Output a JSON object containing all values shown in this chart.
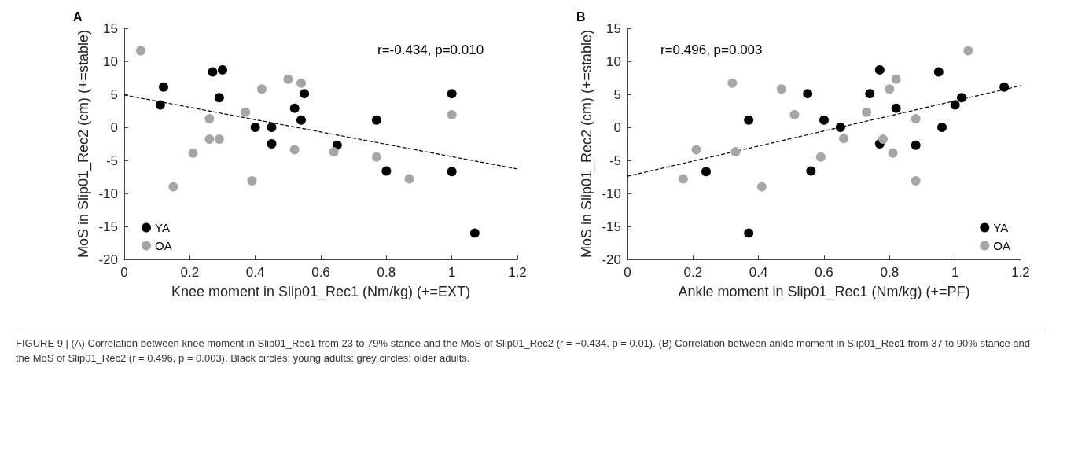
{
  "chart_data": [
    {
      "type": "scatter",
      "title": "A",
      "xlabel": "Knee moment in Slip01_Rec1 (Nm/kg) (+=EXT)",
      "ylabel": "MoS in Slip01_Rec2 (cm) (+=stable)",
      "xlim": [
        0,
        1.2
      ],
      "xticks": [
        0,
        0.2,
        0.4,
        0.6,
        0.8,
        1,
        1.2
      ],
      "ylim": [
        -20,
        15
      ],
      "yticks": [
        -20,
        -15,
        -10,
        -5,
        0,
        5,
        10,
        15
      ],
      "grid": false,
      "legend": "bottom left",
      "marker": "circle",
      "annotations": [
        "r=-0.434, p=0.010",
        "FIGURE 9 | (A) Correlation between knee moment in Slip01_Rec1 from 23 to 79% stance and the MoS of Slip01_Rec2 (r = −0.434, p = 0.01). (B) Correlation between ankle moment in Slip01_Rec1 from 37 to 90% stance and the MoS of Slip01_Rec2 (r = 0.496, p = 0.003). Black circles: young adults; grey circles: older adults."
      ],
      "series": [
        {
          "name": "YA",
          "color": "#000000",
          "x": [
            0.11,
            0.12,
            0.27,
            0.3,
            0.29,
            0.4,
            0.45,
            0.45,
            0.52,
            0.54,
            0.55,
            0.65,
            0.77,
            0.8,
            1.0,
            1.0,
            1.07
          ],
          "values": [
            3.4,
            6.1,
            8.4,
            8.7,
            4.5,
            0,
            0,
            -2.5,
            2.9,
            1.1,
            5.1,
            -2.7,
            1.1,
            -6.6,
            5.1,
            -6.7,
            -16
          ]
        },
        {
          "name": "OA",
          "color": "#a6a6a6",
          "x": [
            0.05,
            0.15,
            0.21,
            0.26,
            0.26,
            0.29,
            0.37,
            0.39,
            0.42,
            0.5,
            0.54,
            0.52,
            0.64,
            0.77,
            0.87,
            1.0
          ],
          "values": [
            11.6,
            -9,
            -3.9,
            1.3,
            -1.8,
            -1.8,
            2.3,
            -8.1,
            5.8,
            7.3,
            6.7,
            -3.4,
            -3.7,
            -4.5,
            -7.8,
            1.9
          ]
        },
        {
          "type": "line",
          "color": "#000000",
          "line_style": "dashed",
          "marker": "none",
          "x": [
            0,
            1.2
          ],
          "values": [
            4.9,
            -6.3
          ]
        }
      ]
    },
    {
      "type": "scatter",
      "title": "B",
      "xlabel": "Ankle moment in Slip01_Rec1 (Nm/kg) (+=PF)",
      "ylabel": "MoS in Slip01_Rec2 (cm) (+=stable)",
      "xlim": [
        0,
        1.2
      ],
      "xticks": [
        0,
        0.2,
        0.4,
        0.6,
        0.8,
        1,
        1.2
      ],
      "ylim": [
        -20,
        15
      ],
      "yticks": [
        -20,
        -15,
        -10,
        -5,
        0,
        5,
        10,
        15
      ],
      "grid": false,
      "legend": "bottom right",
      "marker": "circle",
      "annotations": [
        "r=0.496, p=0.003"
      ],
      "series": [
        {
          "name": "YA",
          "color": "#000000",
          "x": [
            0.37,
            0.24,
            0.37,
            0.55,
            0.56,
            0.6,
            0.65,
            0.74,
            0.77,
            0.77,
            0.82,
            0.88,
            0.95,
            0.96,
            1.0,
            1.02,
            1.15
          ],
          "values": [
            1.1,
            -6.7,
            -16,
            5.1,
            -6.6,
            1.1,
            0,
            5.1,
            8.7,
            -2.5,
            2.9,
            -2.7,
            8.4,
            0,
            3.4,
            4.5,
            6.1
          ]
        },
        {
          "name": "OA",
          "color": "#a6a6a6",
          "x": [
            0.17,
            0.21,
            0.32,
            0.33,
            0.41,
            0.47,
            0.51,
            0.59,
            0.66,
            0.73,
            0.78,
            0.8,
            0.81,
            0.82,
            0.88,
            0.88,
            1.04
          ],
          "values": [
            -7.8,
            -3.4,
            6.7,
            -3.7,
            -9,
            5.8,
            1.9,
            -4.5,
            -1.7,
            2.3,
            -1.8,
            5.8,
            -3.9,
            7.3,
            1.3,
            -8.1,
            11.6
          ]
        },
        {
          "type": "line",
          "color": "#000000",
          "line_style": "dashed",
          "marker": "none",
          "x": [
            0,
            1.2
          ],
          "values": [
            -7.4,
            6.3
          ]
        }
      ]
    }
  ]
}
